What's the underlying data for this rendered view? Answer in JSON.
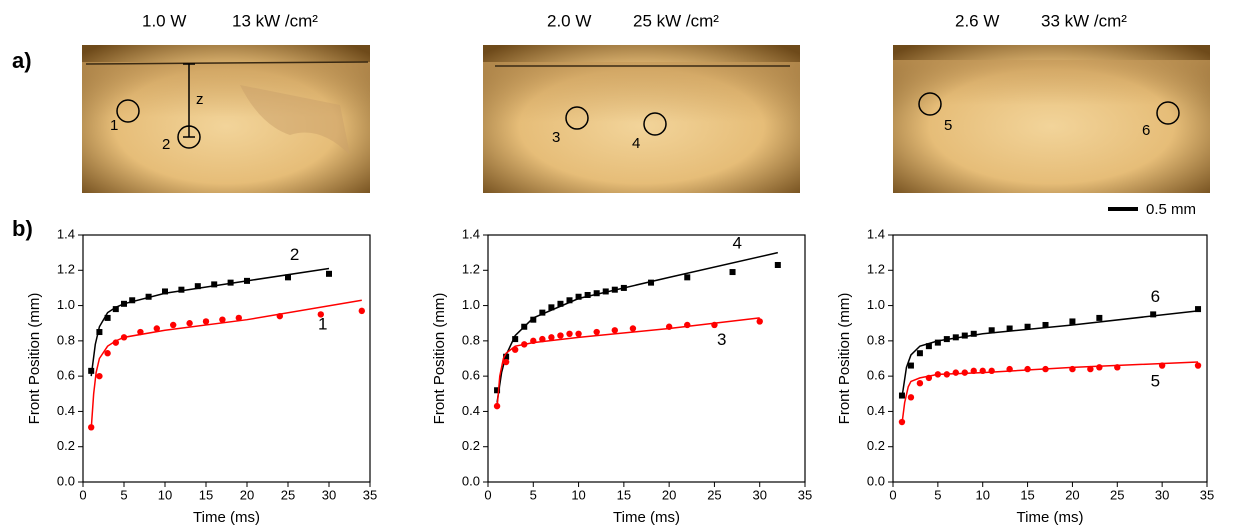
{
  "figure": {
    "panel_a": "a)",
    "panel_b": "b)",
    "scale_bar": "0.5 mm",
    "z_label": "z",
    "photos": [
      {
        "power": "1.0 W",
        "intensity": "13 kW /cm²",
        "markers": [
          "1",
          "2"
        ]
      },
      {
        "power": "2.0 W",
        "intensity": "25 kW /cm²",
        "markers": [
          "3",
          "4"
        ]
      },
      {
        "power": "2.6 W",
        "intensity": "33 kW /cm²",
        "markers": [
          "5",
          "6"
        ]
      }
    ]
  },
  "chart_data": [
    {
      "type": "scatter",
      "xlabel": "Time (ms)",
      "ylabel": "Front Position (mm)",
      "xlim": [
        0,
        35
      ],
      "ylim": [
        0,
        1.4
      ],
      "xticks": [
        0,
        5,
        10,
        15,
        20,
        25,
        30,
        35
      ],
      "yticks": [
        {
          "value": 0,
          "label": "0.0"
        },
        0.2,
        0.4,
        0.6,
        0.8,
        {
          "value": 1,
          "label": "1.0"
        },
        1.2,
        1.4
      ],
      "series": [
        {
          "name": "2",
          "color": "#000000",
          "marker": "square",
          "x": [
            1,
            2,
            3,
            4,
            5,
            6,
            8,
            10,
            12,
            14,
            16,
            18,
            20,
            25,
            30
          ],
          "values": [
            0.63,
            0.85,
            0.93,
            0.98,
            1.01,
            1.03,
            1.05,
            1.08,
            1.09,
            1.11,
            1.12,
            1.13,
            1.14,
            1.16,
            1.18
          ],
          "fit_x": [
            1,
            1.5,
            2,
            3,
            4,
            5,
            10,
            20,
            30
          ],
          "fit_values": [
            0.6,
            0.78,
            0.88,
            0.96,
            0.99,
            1.01,
            1.07,
            1.14,
            1.21
          ]
        },
        {
          "name": "1",
          "color": "#ff0000",
          "marker": "circle",
          "x": [
            1,
            2,
            3,
            4,
            5,
            7,
            9,
            11,
            13,
            15,
            17,
            19,
            24,
            29,
            34
          ],
          "values": [
            0.31,
            0.6,
            0.73,
            0.79,
            0.82,
            0.85,
            0.87,
            0.89,
            0.9,
            0.91,
            0.92,
            0.93,
            0.94,
            0.95,
            0.97
          ],
          "fit_x": [
            1,
            1.3,
            1.6,
            2,
            3,
            4,
            5,
            10,
            20,
            34
          ],
          "fit_values": [
            0.3,
            0.5,
            0.62,
            0.7,
            0.77,
            0.8,
            0.82,
            0.86,
            0.92,
            1.03
          ]
        }
      ]
    },
    {
      "type": "scatter",
      "xlabel": "Time (ms)",
      "ylabel": "Front Position (mm)",
      "xlim": [
        0,
        35
      ],
      "ylim": [
        0,
        1.4
      ],
      "xticks": [
        0,
        5,
        10,
        15,
        20,
        25,
        30,
        35
      ],
      "yticks": [
        {
          "value": 0,
          "label": "0.0"
        },
        0.2,
        0.4,
        0.6,
        0.8,
        {
          "value": 1,
          "label": "1.0"
        },
        1.2,
        1.4
      ],
      "series": [
        {
          "name": "4",
          "color": "#000000",
          "marker": "square",
          "x": [
            1,
            2,
            3,
            4,
            5,
            6,
            7,
            8,
            9,
            10,
            11,
            12,
            13,
            14,
            15,
            18,
            22,
            27,
            32
          ],
          "values": [
            0.52,
            0.71,
            0.81,
            0.88,
            0.92,
            0.96,
            0.99,
            1.01,
            1.03,
            1.05,
            1.06,
            1.07,
            1.08,
            1.09,
            1.1,
            1.13,
            1.16,
            1.19,
            1.23
          ],
          "fit_x": [
            1,
            1.5,
            2,
            3,
            5,
            10,
            20,
            32
          ],
          "fit_values": [
            0.45,
            0.62,
            0.72,
            0.83,
            0.93,
            1.04,
            1.16,
            1.3
          ]
        },
        {
          "name": "3",
          "color": "#ff0000",
          "marker": "circle",
          "x": [
            1,
            2,
            3,
            4,
            5,
            6,
            7,
            8,
            9,
            10,
            12,
            14,
            16,
            20,
            22,
            25,
            30
          ],
          "values": [
            0.43,
            0.68,
            0.75,
            0.78,
            0.8,
            0.81,
            0.82,
            0.83,
            0.84,
            0.84,
            0.85,
            0.86,
            0.87,
            0.88,
            0.89,
            0.89,
            0.91
          ],
          "fit_x": [
            1,
            1.3,
            1.7,
            2,
            3,
            5,
            10,
            20,
            30
          ],
          "fit_values": [
            0.42,
            0.6,
            0.7,
            0.73,
            0.77,
            0.79,
            0.82,
            0.87,
            0.93
          ]
        }
      ]
    },
    {
      "type": "scatter",
      "xlabel": "Time (ms)",
      "ylabel": "Front Position (mm)",
      "xlim": [
        0,
        35
      ],
      "ylim": [
        0,
        1.4
      ],
      "xticks": [
        0,
        5,
        10,
        15,
        20,
        25,
        30,
        35
      ],
      "yticks": [
        {
          "value": 0,
          "label": "0.0"
        },
        0.2,
        0.4,
        0.6,
        0.8,
        {
          "value": 1,
          "label": "1.0"
        },
        1.2,
        1.4
      ],
      "series": [
        {
          "name": "6",
          "color": "#000000",
          "marker": "square",
          "x": [
            1,
            2,
            3,
            4,
            5,
            6,
            7,
            8,
            9,
            11,
            13,
            15,
            17,
            20,
            23,
            29,
            34
          ],
          "values": [
            0.49,
            0.66,
            0.73,
            0.77,
            0.79,
            0.81,
            0.82,
            0.83,
            0.84,
            0.86,
            0.87,
            0.88,
            0.89,
            0.91,
            0.93,
            0.95,
            0.98
          ],
          "fit_x": [
            1,
            1.5,
            2,
            3,
            5,
            10,
            20,
            34
          ],
          "fit_values": [
            0.48,
            0.65,
            0.72,
            0.77,
            0.8,
            0.84,
            0.89,
            0.97
          ]
        },
        {
          "name": "5",
          "color": "#ff0000",
          "marker": "circle",
          "x": [
            1,
            2,
            3,
            4,
            5,
            6,
            7,
            8,
            9,
            10,
            11,
            13,
            15,
            17,
            20,
            22,
            23,
            25,
            30,
            34
          ],
          "values": [
            0.34,
            0.48,
            0.56,
            0.59,
            0.61,
            0.61,
            0.62,
            0.62,
            0.63,
            0.63,
            0.63,
            0.64,
            0.64,
            0.64,
            0.64,
            0.64,
            0.65,
            0.65,
            0.66,
            0.66
          ],
          "fit_x": [
            1,
            1.3,
            1.7,
            2,
            3,
            5,
            10,
            20,
            34
          ],
          "fit_values": [
            0.33,
            0.45,
            0.54,
            0.57,
            0.59,
            0.61,
            0.62,
            0.65,
            0.68
          ]
        }
      ]
    }
  ]
}
